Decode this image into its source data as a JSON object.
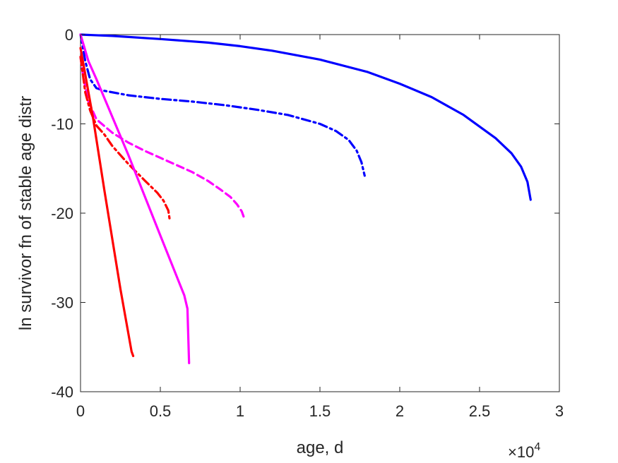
{
  "chart_data": {
    "type": "line",
    "xlabel": "age, d",
    "ylabel": "ln survivor fn of stable age distr",
    "x_exponent_label": {
      "base": "×10",
      "exp": "4"
    },
    "xlim": [
      0,
      30000
    ],
    "ylim": [
      -40,
      0
    ],
    "xticks": [
      0,
      5000,
      10000,
      15000,
      20000,
      25000,
      30000
    ],
    "xtick_labels": [
      "0",
      "0.5",
      "1",
      "1.5",
      "2",
      "2.5",
      "3"
    ],
    "yticks": [
      0,
      -10,
      -20,
      -30,
      -40
    ],
    "ytick_labels": [
      "0",
      "-10",
      "-20",
      "-30",
      "-40"
    ],
    "grid": false,
    "series": [
      {
        "color": "#0000ff",
        "style": "solid",
        "x": [
          0,
          2000,
          5000,
          8000,
          10000,
          12000,
          15000,
          18000,
          20000,
          22000,
          24000,
          26000,
          27000,
          27600,
          28000,
          28200
        ],
        "y": [
          0,
          -0.15,
          -0.5,
          -0.9,
          -1.3,
          -1.8,
          -2.8,
          -4.2,
          -5.5,
          -7.0,
          -9.0,
          -11.6,
          -13.3,
          -14.8,
          -16.5,
          -18.5
        ]
      },
      {
        "color": "#0000ff",
        "style": "dashdot",
        "x": [
          0,
          300,
          600,
          1000,
          1500,
          3000,
          5000,
          7000,
          9000,
          11000,
          13000,
          15000,
          16000,
          16800,
          17300,
          17600,
          17800
        ],
        "y": [
          0,
          -3.0,
          -5.0,
          -6.0,
          -6.3,
          -6.8,
          -7.2,
          -7.5,
          -7.9,
          -8.4,
          -9.0,
          -10.0,
          -10.8,
          -11.8,
          -13.0,
          -14.3,
          -15.8
        ]
      },
      {
        "color": "#ff00ff",
        "style": "dashed",
        "x": [
          0,
          200,
          500,
          1000,
          2000,
          3000,
          4000,
          5000,
          6000,
          7000,
          8000,
          8800,
          9400,
          9800,
          10100,
          10300
        ],
        "y": [
          -2.5,
          -5.0,
          -7.5,
          -9.5,
          -11.0,
          -12.1,
          -13.0,
          -13.8,
          -14.6,
          -15.4,
          -16.4,
          -17.4,
          -18.2,
          -19.0,
          -19.8,
          -20.8
        ]
      },
      {
        "color": "#ff0000",
        "style": "dashdot",
        "x": [
          0,
          300,
          600,
          1000,
          1500,
          2000,
          3000,
          4000,
          4800,
          5200,
          5500,
          5600
        ],
        "y": [
          -2.5,
          -6.5,
          -8.5,
          -10.2,
          -11.2,
          -12.5,
          -14.5,
          -16.3,
          -17.7,
          -18.6,
          -19.7,
          -20.9
        ]
      },
      {
        "color": "#ff00ff",
        "style": "solid",
        "x": [
          0,
          500,
          1000,
          3000,
          5000,
          6500,
          6700,
          6800
        ],
        "y": [
          0,
          -3.0,
          -5.0,
          -13.5,
          -22.5,
          -29.2,
          -30.7,
          -36.8
        ]
      },
      {
        "color": "#ff0000",
        "style": "solid",
        "x": [
          0,
          800,
          1500,
          2500,
          3200,
          3300
        ],
        "y": [
          -1.5,
          -9.5,
          -17.5,
          -28.5,
          -35.5,
          -36.0
        ]
      }
    ]
  }
}
